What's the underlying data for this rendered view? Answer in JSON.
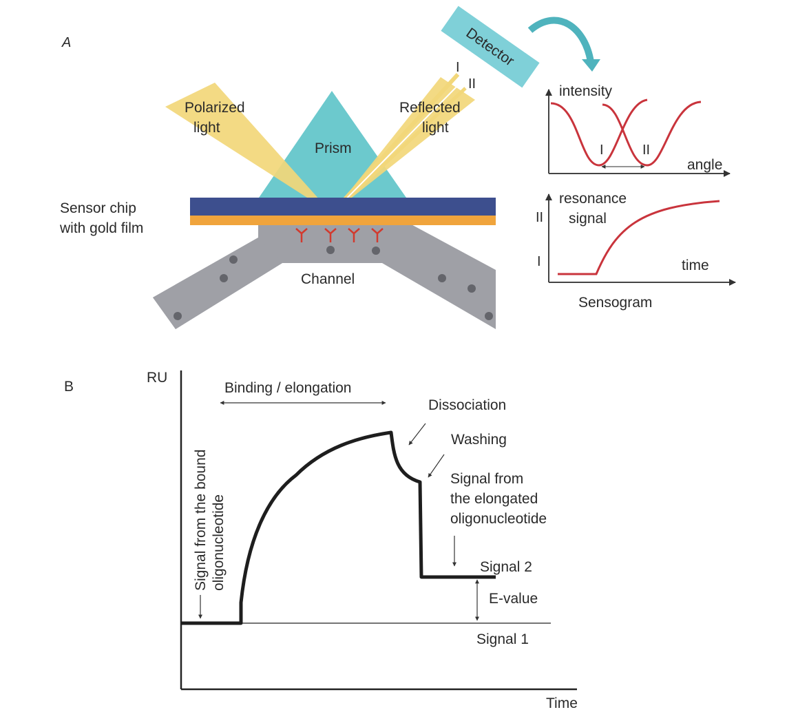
{
  "panel_a": {
    "letter": "A",
    "detector": "Detector",
    "polarized_light": [
      "Polarized",
      "light"
    ],
    "prism": "Prism",
    "reflected_light": [
      "Reflected",
      "light"
    ],
    "beam_i": "I",
    "beam_ii": "II",
    "sensor_chip": [
      "Sensor chip",
      "with gold film"
    ],
    "channel": "Channel",
    "colors": {
      "prism": "#6cc9cd",
      "light": "#f2d77a",
      "chip_blue": "#3d4f8e",
      "gold": "#f0a43c",
      "channel": "#9fa0a6",
      "antibody": "#d23a2e",
      "detector": "#7fd0d8",
      "curve": "#c9343c"
    },
    "intensity_plot": {
      "ylabel": "intensity",
      "xlabel": "angle",
      "dip_i": "I",
      "dip_ii": "II"
    },
    "sensogram_plot": {
      "ylabel": [
        "resonance",
        "signal"
      ],
      "xlabel": "time",
      "level_ii": "II",
      "level_i": "I",
      "caption": "Sensogram"
    }
  },
  "panel_b": {
    "letter": "B",
    "ylabel": "RU",
    "xlabel": "Time",
    "binding": "Binding / elongation",
    "dissociation": "Dissociation",
    "washing": "Washing",
    "signal_bound": [
      "Signal from the bound",
      "oligonucleotide"
    ],
    "signal_elongated": [
      "Signal from",
      "the elongated",
      "oligonucleotide"
    ],
    "signal_2": "Signal 2",
    "signal_1": "Signal 1",
    "e_value": "E-value"
  }
}
